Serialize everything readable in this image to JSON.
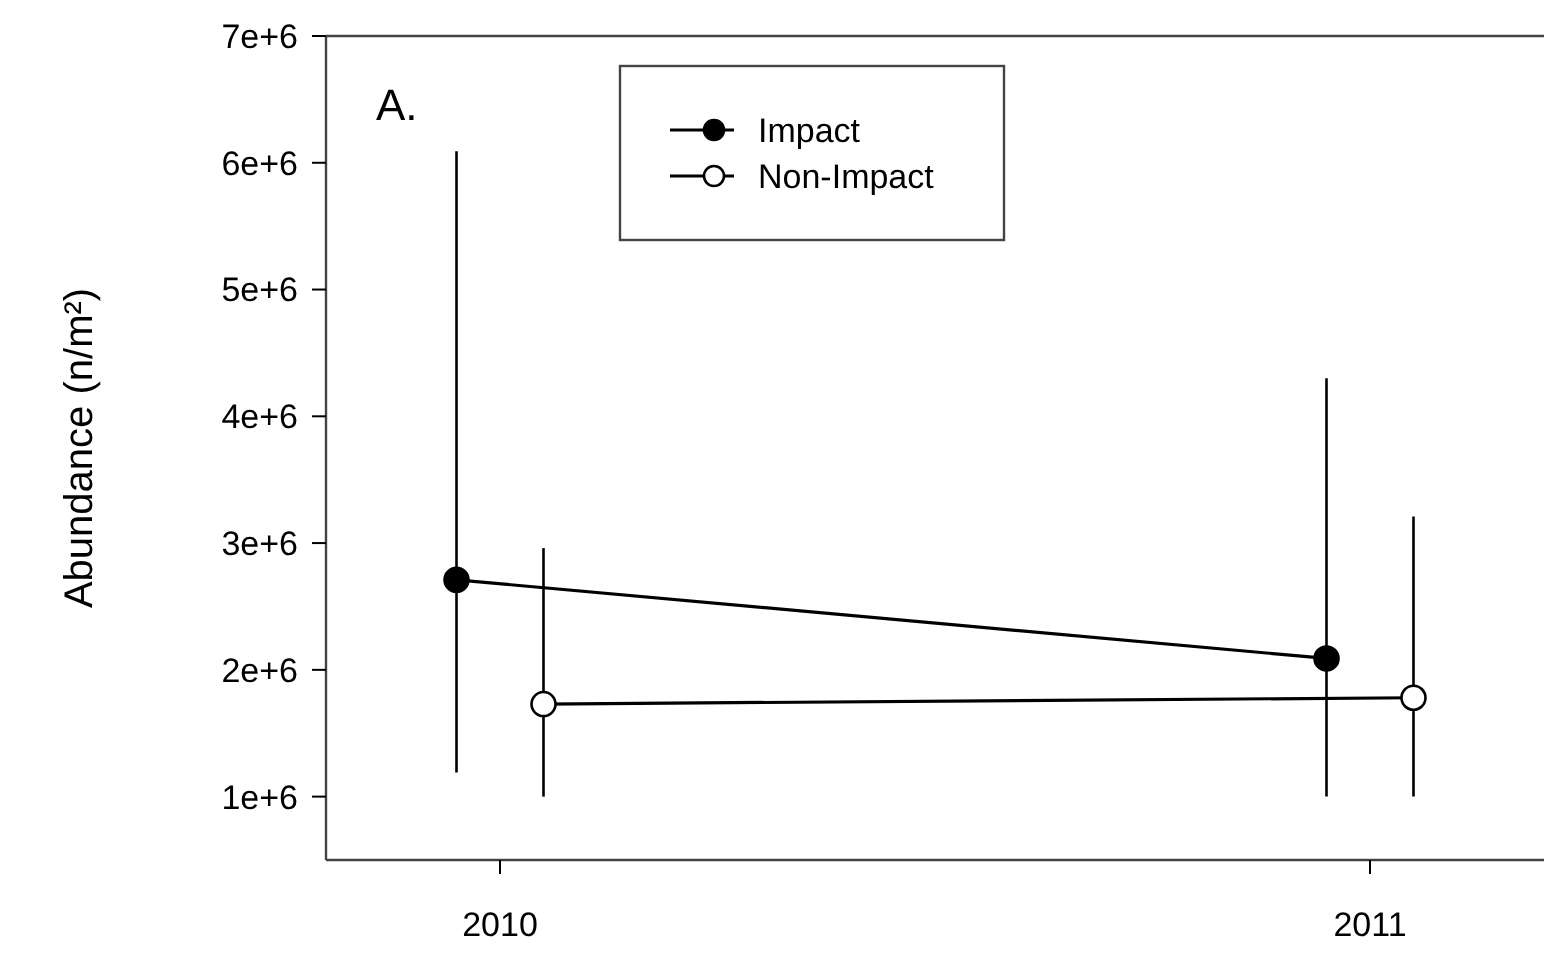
{
  "chart_data": {
    "type": "line",
    "ylabel": "Abundance (n/m²)",
    "annotations": [
      "A."
    ],
    "xlim": [
      2009.8,
      2011.2
    ],
    "xticks": [
      2010,
      2011
    ],
    "ylim": [
      500000,
      7000000
    ],
    "yticks": [
      {
        "value": 1000000,
        "label": "1e+6"
      },
      {
        "value": 2000000,
        "label": "2e+6"
      },
      {
        "value": 3000000,
        "label": "3e+6"
      },
      {
        "value": 4000000,
        "label": "4e+6"
      },
      {
        "value": 5000000,
        "label": "5e+6"
      },
      {
        "value": 6000000,
        "label": "6e+6"
      },
      {
        "value": 7000000,
        "label": "7e+6"
      }
    ],
    "series": [
      {
        "name": "Impact",
        "color": "#000000",
        "marker": "circle",
        "x": [
          2009.95,
          2010.95
        ],
        "values": [
          2710000,
          2090000
        ],
        "errors": [
          [
            1190000,
            6090000
          ],
          [
            1000000,
            4300000
          ]
        ]
      },
      {
        "name": "Non-Impact",
        "color": "#000000",
        "marker": "circle",
        "x": [
          2010.05,
          2011.05
        ],
        "values": [
          1730000,
          1780000
        ],
        "errors": [
          [
            1000000,
            2960000
          ],
          [
            1000000,
            3210000
          ]
        ]
      }
    ],
    "legend": "top",
    "grid": false,
    "line_style": "solid"
  }
}
